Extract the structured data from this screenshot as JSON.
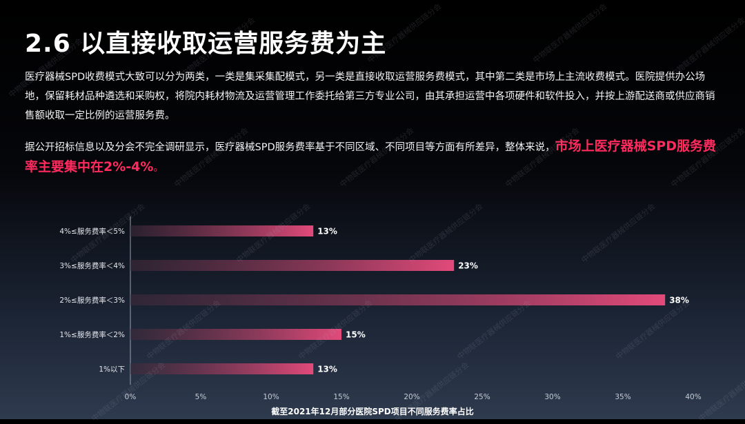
{
  "slide": {
    "title": "2.6 以直接收取运营服务费为主",
    "paragraph1": "医疗器械SPD收费模式大致可以分为两类，一类是集采集配模式，另一类是直接收取运营服务费模式，其中第二类是市场上主流收费模式。医院提供办公场地，保留耗材品种遴选和采购权，将院内耗材物流及运营管理工作委托给第三方专业公司，由其承担运营中各项硬件和软件投入，并按上游配送商或供应商销售额收取一定比例的运营服务费。",
    "paragraph2_text": "据公开招标信息以及分会不完全调研显示，医疗器械SPD服务费率基于不同区域、不同项目等方面有所差异，整体来说，",
    "paragraph2_highlight": "市场上医疗器械SPD服务费率主要集中在2%-4%",
    "paragraph2_end": "。",
    "watermark": "中物联医疗器械供应链分会"
  },
  "chart_data": {
    "type": "bar",
    "orientation": "horizontal",
    "categories": [
      "4%≤服务费率＜5%",
      "3%≤服务费率＜4%",
      "2%≤服务费率＜3%",
      "1%≤服务费率＜2%",
      "1%以下"
    ],
    "values": [
      13,
      23,
      38,
      15,
      13
    ],
    "data_labels": [
      "13%",
      "23%",
      "38%",
      "15%",
      "13%"
    ],
    "xticks": [
      "0%",
      "5%",
      "10%",
      "15%",
      "20%",
      "25%",
      "30%",
      "35%",
      "40%"
    ],
    "xlim": [
      0,
      40
    ],
    "title": "截至2021年12月部分医院SPD项目不同服务费率占比",
    "grid": false,
    "colors": {
      "bar_start": "#4a2a3c",
      "bar_end": "#e24a7a",
      "highlight": "#ff2b5e"
    }
  }
}
